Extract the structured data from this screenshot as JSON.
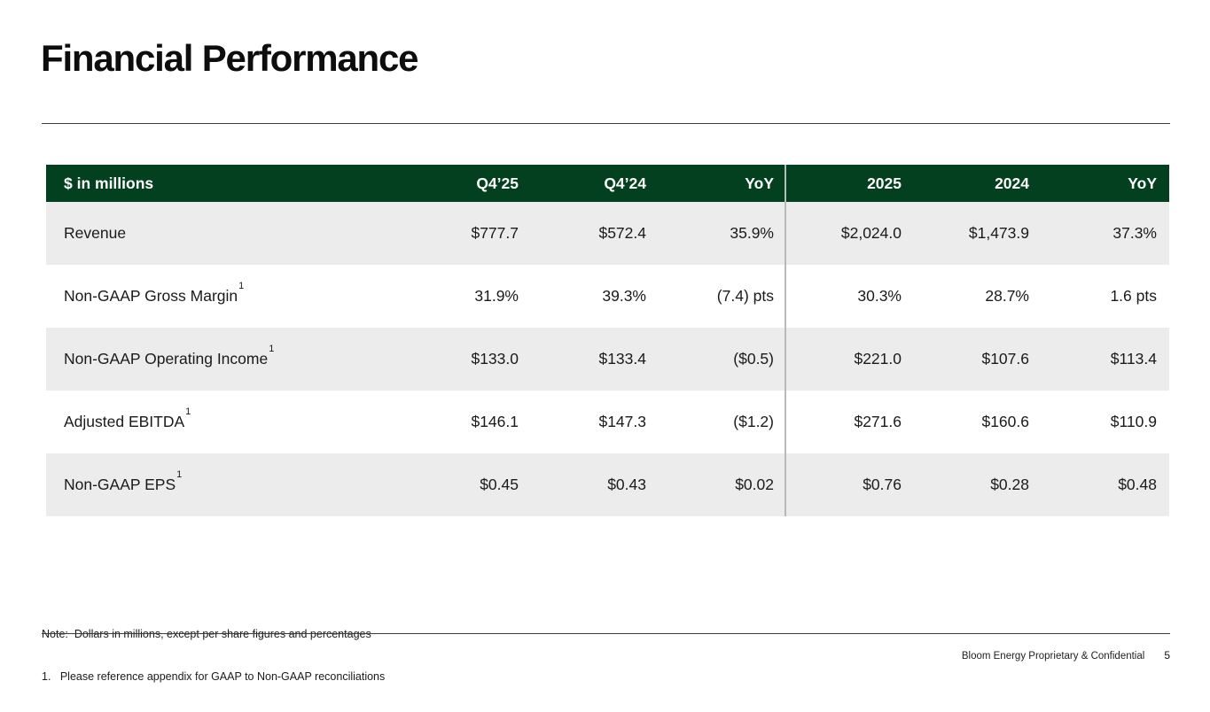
{
  "slide": {
    "title": "Financial Performance",
    "notes": {
      "line1": "Note:  Dollars in millions, except per share figures and percentages",
      "line2": "1.   Please reference appendix for GAAP to Non-GAAP reconciliations"
    },
    "footer": {
      "confidential": "Bloom Energy Proprietary & Confidential",
      "page_number": "5"
    }
  },
  "table": {
    "header": {
      "label": "$ in millions",
      "columns": [
        "Q4’25",
        "Q4’24",
        "YoY",
        "2025",
        "2024",
        "YoY"
      ]
    },
    "rows": [
      {
        "label": "Revenue",
        "sup": "",
        "values": [
          "$777.7",
          "$572.4",
          "35.9%",
          "$2,024.0",
          "$1,473.9",
          "37.3%"
        ]
      },
      {
        "label": "Non-GAAP Gross Margin",
        "sup": "1",
        "values": [
          "31.9%",
          "39.3%",
          "(7.4) pts",
          "30.3%",
          "28.7%",
          "1.6 pts"
        ]
      },
      {
        "label": "Non-GAAP Operating Income",
        "sup": "1",
        "values": [
          "$133.0",
          "$133.4",
          "($0.5)",
          "$221.0",
          "$107.6",
          "$113.4"
        ]
      },
      {
        "label": "Adjusted EBITDA",
        "sup": "1",
        "values": [
          "$146.1",
          "$147.3",
          "($1.2)",
          "$271.6",
          "$160.6",
          "$110.9"
        ]
      },
      {
        "label": "Non-GAAP EPS",
        "sup": "1",
        "values": [
          "$0.45",
          "$0.43",
          "$0.02",
          "$0.76",
          "$0.28",
          "$0.48"
        ]
      }
    ]
  },
  "colors": {
    "header_green": "#03401F",
    "row_alt_gray": "#ECECEC",
    "divider_gray": "#B9B9B9",
    "rule_dark": "#3C3C3C"
  }
}
